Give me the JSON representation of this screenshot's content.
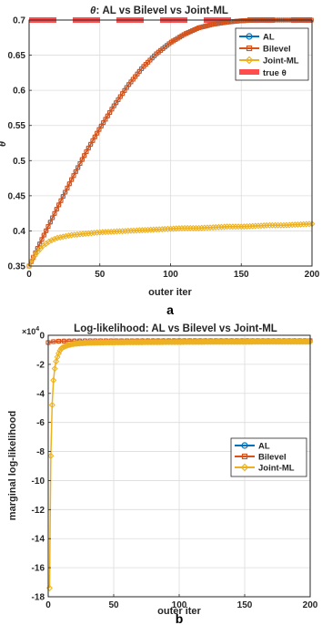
{
  "chart_data": [
    {
      "type": "line",
      "title_prefix": "θ",
      "title_rest": ":  AL  vs  Bilevel  vs  Joint-ML",
      "xlabel": "outer iter",
      "ylabel": "θ",
      "panel_label": "a",
      "xlim": [
        0,
        200
      ],
      "ylim": [
        0.35,
        0.7
      ],
      "x_ticks": [
        0,
        50,
        100,
        150,
        200
      ],
      "y_ticks": [
        0.35,
        0.4,
        0.45,
        0.5,
        0.55,
        0.6,
        0.65,
        0.7
      ],
      "y_tick_labels": [
        "0.35",
        "0.4",
        "0.45",
        "0.5",
        "0.55",
        "0.6",
        "0.65",
        "0.7"
      ],
      "grid": true,
      "legend_position": "top-right",
      "series": [
        {
          "name": "AL",
          "color": "#0072BD",
          "marker": "circle",
          "x": [
            0,
            10,
            20,
            30,
            40,
            50,
            60,
            70,
            80,
            90,
            100,
            110,
            120,
            130,
            140,
            150,
            160,
            170,
            180,
            190,
            200
          ],
          "y": [
            0.35,
            0.392,
            0.433,
            0.473,
            0.511,
            0.546,
            0.578,
            0.607,
            0.632,
            0.652,
            0.668,
            0.68,
            0.689,
            0.694,
            0.697,
            0.699,
            0.7,
            0.7,
            0.7,
            0.7,
            0.7
          ]
        },
        {
          "name": "Bilevel",
          "color": "#D95319",
          "marker": "square",
          "x": [
            0,
            10,
            20,
            30,
            40,
            50,
            60,
            70,
            80,
            90,
            100,
            110,
            120,
            130,
            140,
            150,
            160,
            170,
            180,
            190,
            200
          ],
          "y": [
            0.35,
            0.392,
            0.433,
            0.473,
            0.511,
            0.546,
            0.578,
            0.607,
            0.632,
            0.652,
            0.668,
            0.68,
            0.689,
            0.694,
            0.697,
            0.699,
            0.7,
            0.7,
            0.7,
            0.7,
            0.7
          ]
        },
        {
          "name": "Joint-ML",
          "color": "#EDB120",
          "marker": "diamond",
          "x": [
            0,
            2,
            5,
            10,
            15,
            20,
            30,
            40,
            50,
            60,
            70,
            80,
            90,
            100,
            110,
            120,
            130,
            140,
            150,
            160,
            170,
            180,
            190,
            200
          ],
          "y": [
            0.35,
            0.358,
            0.368,
            0.379,
            0.386,
            0.39,
            0.394,
            0.396,
            0.398,
            0.399,
            0.4,
            0.401,
            0.402,
            0.403,
            0.404,
            0.404,
            0.405,
            0.406,
            0.406,
            0.407,
            0.408,
            0.408,
            0.409,
            0.41
          ]
        }
      ],
      "true_theta": {
        "name": "true  θ",
        "value": 0.7,
        "color": "#FF0000"
      }
    },
    {
      "type": "line",
      "title": "Log-likelihood: AL vs Bilevel vs Joint-ML",
      "exponent_base": "×10",
      "exponent_power": "4",
      "xlabel": "outer iter",
      "ylabel": "marginal log-likelihood",
      "panel_label": "b",
      "xlim": [
        0,
        200
      ],
      "ylim": [
        -18,
        0
      ],
      "x_ticks": [
        0,
        50,
        100,
        150,
        200
      ],
      "y_ticks": [
        0,
        -2,
        -4,
        -6,
        -8,
        -10,
        -12,
        -14,
        -16,
        -18
      ],
      "y_tick_labels": [
        "0",
        "-2",
        "-4",
        "-6",
        "-8",
        "-10",
        "-12",
        "-14",
        "-16",
        "-18"
      ],
      "grid": true,
      "legend_position": "right",
      "series": [
        {
          "name": "AL",
          "color": "#0072BD",
          "marker": "circle",
          "x": [
            0,
            5,
            10,
            20,
            30,
            50,
            100,
            150,
            200
          ],
          "y": [
            -0.5,
            -0.42,
            -0.4,
            -0.39,
            -0.38,
            -0.38,
            -0.37,
            -0.37,
            -0.37
          ]
        },
        {
          "name": "Bilevel",
          "color": "#D95319",
          "marker": "square",
          "x": [
            0,
            5,
            10,
            20,
            30,
            50,
            100,
            150,
            200
          ],
          "y": [
            -0.5,
            -0.42,
            -0.4,
            -0.39,
            -0.38,
            -0.38,
            -0.37,
            -0.37,
            -0.37
          ]
        },
        {
          "name": "Joint-ML",
          "color": "#EDB120",
          "marker": "diamond",
          "x": [
            1,
            2,
            3,
            4,
            5,
            6,
            7,
            8,
            9,
            10,
            12,
            14,
            16,
            18,
            20,
            25,
            30,
            40,
            50,
            60,
            80,
            100,
            120,
            140,
            160,
            180,
            200
          ],
          "y": [
            -17.4,
            -8.3,
            -4.8,
            -3.1,
            -2.3,
            -1.8,
            -1.5,
            -1.25,
            -1.05,
            -0.9,
            -0.8,
            -0.72,
            -0.66,
            -0.62,
            -0.59,
            -0.55,
            -0.52,
            -0.5,
            -0.49,
            -0.48,
            -0.47,
            -0.46,
            -0.45,
            -0.45,
            -0.44,
            -0.44,
            -0.44
          ]
        }
      ]
    }
  ]
}
